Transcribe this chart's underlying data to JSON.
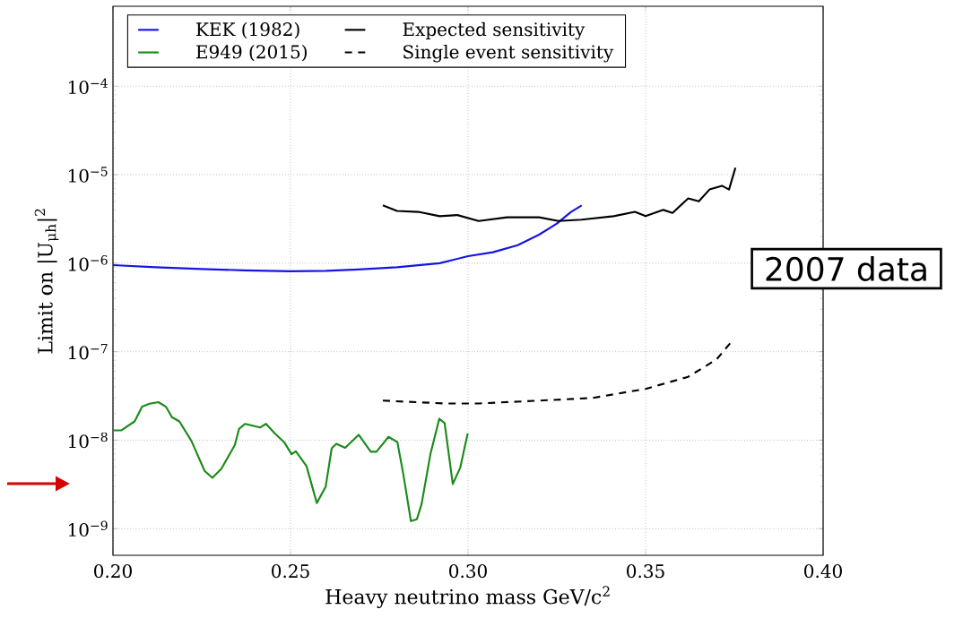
{
  "chart_data": {
    "type": "line",
    "xlabel": "Heavy neutrino mass GeV/c$^{2}$",
    "ylabel": "Limit on |U$_{μh}$|$^{2}$",
    "annotations": [
      "2007 data"
    ],
    "xlim": [
      0.2,
      0.4
    ],
    "ylim": [
      5e-10,
      0.0008
    ],
    "xticks": [
      {
        "value": 0.2,
        "label": "0.20"
      },
      {
        "value": 0.25,
        "label": "0.25"
      },
      {
        "value": 0.3,
        "label": "0.30"
      },
      {
        "value": 0.35,
        "label": "0.35"
      },
      {
        "value": 0.4,
        "label": "0.40"
      }
    ],
    "yticks": [
      {
        "value": 1e-09,
        "label": "10$^{−9}$"
      },
      {
        "value": 1e-08,
        "label": "10$^{−8}$"
      },
      {
        "value": 1e-07,
        "label": "10$^{−7}$"
      },
      {
        "value": 1e-06,
        "label": "10$^{−6}$"
      },
      {
        "value": 1e-05,
        "label": "10$^{−5}$"
      },
      {
        "value": 0.0001,
        "label": "10$^{−4}$"
      }
    ],
    "log": "y",
    "grid": true,
    "legend": "top left",
    "series": [
      {
        "name": "KEK (1982)",
        "color": "#1414e6",
        "line_style": "solid",
        "x": [
          0.2,
          0.212,
          0.225,
          0.237,
          0.25,
          0.26,
          0.269,
          0.28,
          0.292,
          0.3,
          0.307,
          0.314,
          0.32,
          0.325,
          0.329,
          0.332
        ],
        "values": [
          9.5e-07,
          9e-07,
          8.6e-07,
          8.3e-07,
          8.1e-07,
          8.2e-07,
          8.5e-07,
          9e-07,
          1e-06,
          1.2e-06,
          1.33e-06,
          1.6e-06,
          2.1e-06,
          2.8e-06,
          3.8e-06,
          4.5e-06
        ]
      },
      {
        "name": "E949 (2015)",
        "color": "#1a8a1a",
        "line_style": "solid",
        "x": [
          0.2,
          0.2023,
          0.2061,
          0.2082,
          0.2103,
          0.2128,
          0.2149,
          0.2166,
          0.2187,
          0.2221,
          0.2258,
          0.228,
          0.2305,
          0.2343,
          0.2355,
          0.2372,
          0.2414,
          0.2431,
          0.2456,
          0.2482,
          0.2503,
          0.2515,
          0.2545,
          0.2574,
          0.2599,
          0.2616,
          0.2629,
          0.2654,
          0.2692,
          0.2726,
          0.2742,
          0.2776,
          0.2801,
          0.2818,
          0.2839,
          0.2856,
          0.2869,
          0.2894,
          0.2919,
          0.2934,
          0.2957,
          0.2978,
          0.2999
        ],
        "values": [
          1.29e-08,
          1.29e-08,
          1.63e-08,
          2.39e-08,
          2.58e-08,
          2.69e-08,
          2.39e-08,
          1.82e-08,
          1.63e-08,
          9.8e-09,
          4.5e-09,
          3.76e-09,
          4.73e-09,
          8.8e-09,
          1.34e-08,
          1.53e-08,
          1.39e-08,
          1.53e-08,
          1.19e-08,
          9.5e-09,
          6.95e-09,
          7.5e-09,
          5.1e-09,
          1.95e-09,
          2.98e-09,
          8.1e-09,
          9.1e-09,
          8.2e-09,
          1.15e-08,
          7.4e-09,
          7.4e-09,
          1.09e-08,
          9.5e-09,
          4.06e-09,
          1.22e-09,
          1.28e-09,
          1.88e-09,
          6.95e-09,
          1.75e-08,
          1.56e-08,
          3.2e-09,
          4.9e-09,
          1.19e-08
        ]
      },
      {
        "name": "Expected sensitivity",
        "color": "#000000",
        "line_style": "solid",
        "x": [
          0.276,
          0.28,
          0.286,
          0.292,
          0.297,
          0.303,
          0.311,
          0.32,
          0.3255,
          0.332,
          0.341,
          0.347,
          0.35,
          0.355,
          0.3576,
          0.362,
          0.365,
          0.368,
          0.3715,
          0.3735,
          0.3753
        ],
        "values": [
          4.5e-06,
          3.9e-06,
          3.8e-06,
          3.4e-06,
          3.5e-06,
          3e-06,
          3.3e-06,
          3.3e-06,
          3e-06,
          3.1e-06,
          3.4e-06,
          3.8e-06,
          3.4e-06,
          4e-06,
          3.7e-06,
          5.4e-06,
          5e-06,
          6.8e-06,
          7.5e-06,
          6.8e-06,
          1.2e-05
        ]
      },
      {
        "name": "Single event sensitivity",
        "color": "#000000",
        "line_style": "dashed",
        "x": [
          0.276,
          0.2934,
          0.303,
          0.32,
          0.335,
          0.35,
          0.362,
          0.37,
          0.3747
        ],
        "values": [
          2.8e-08,
          2.6e-08,
          2.6e-08,
          2.8e-08,
          3e-08,
          3.8e-08,
          5.2e-08,
          8.2e-08,
          1.37e-07
        ]
      }
    ]
  }
}
